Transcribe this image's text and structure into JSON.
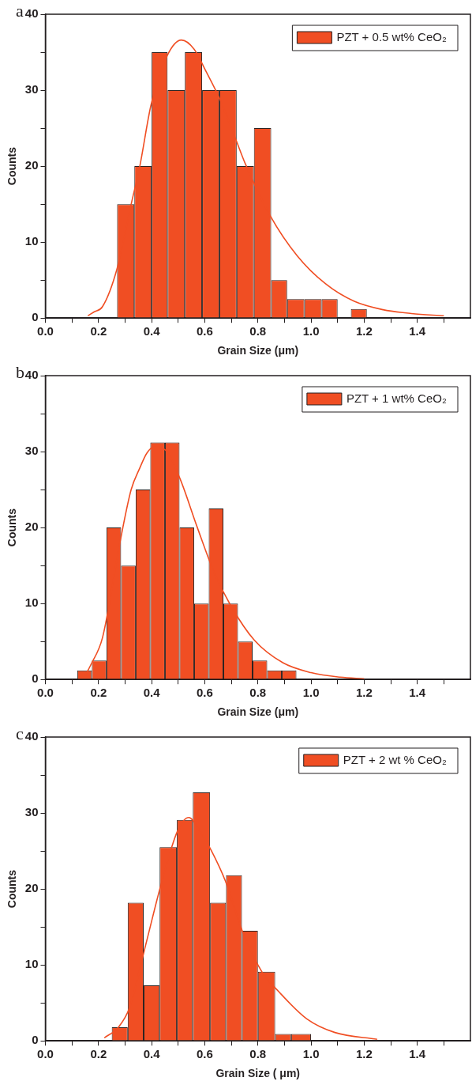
{
  "chart_data": [
    {
      "type": "histogram",
      "title": "a",
      "xlabel": "Grain Size (μm)",
      "ylabel": "Counts",
      "xlim": [
        0,
        1.6
      ],
      "ylim": [
        0,
        40
      ],
      "legend": "top right",
      "xticks": [
        {
          "value": 0,
          "label": "0.0"
        },
        {
          "value": 0.1,
          "label": null
        },
        {
          "value": 0.2,
          "label": "0.2"
        },
        {
          "value": 0.3,
          "label": null
        },
        {
          "value": 0.4,
          "label": "0.4"
        },
        {
          "value": 0.5,
          "label": null
        },
        {
          "value": 0.6,
          "label": "0.6"
        },
        {
          "value": 0.7,
          "label": null
        },
        {
          "value": 0.8,
          "label": "0.8"
        },
        {
          "value": 0.9,
          "label": null
        },
        {
          "value": 1,
          "label": "1.0"
        },
        {
          "value": 1.1,
          "label": null
        },
        {
          "value": 1.2,
          "label": "1.2"
        },
        {
          "value": 1.3,
          "label": null
        },
        {
          "value": 1.4,
          "label": "1.4"
        },
        {
          "value": 1.5,
          "label": null
        }
      ],
      "yticks": [
        0,
        {
          "value": 5,
          "label": null
        },
        10,
        {
          "value": 15,
          "label": null
        },
        20,
        {
          "value": 25,
          "label": null
        },
        30,
        {
          "value": 35,
          "label": null
        },
        40
      ],
      "series": [
        {
          "name": "PZT + 0.5 wt% CeO₂",
          "color": "#f04e23",
          "bins": [
            0.27,
            0.335,
            0.4,
            0.46,
            0.525,
            0.59,
            0.655,
            0.72,
            0.785,
            0.85,
            0.91,
            0.975,
            1.04,
            1.1,
            1.15,
            1.21
          ],
          "values": [
            15,
            20,
            35,
            30,
            35,
            30,
            30,
            20,
            25,
            5,
            2.5,
            2.5,
            2.5,
            0,
            1.2
          ]
        },
        {
          "type": "line",
          "color": "#f04e23",
          "x": [
            0.16,
            0.183,
            0.215,
            0.269,
            0.323,
            0.355,
            0.398,
            0.458,
            0.512,
            0.56,
            0.603,
            0.657,
            0.716,
            0.754,
            0.846,
            0.948,
            1.055,
            1.163,
            1.271,
            1.378,
            1.5
          ],
          "values": [
            0.3,
            0.8,
            1.5,
            6.4,
            15,
            19.9,
            28.1,
            34.5,
            36.6,
            35.4,
            32.6,
            28.8,
            23.6,
            20.2,
            13.5,
            8.2,
            4.5,
            2.2,
            1.1,
            0.6,
            0.3
          ]
        }
      ]
    },
    {
      "type": "histogram",
      "title": "b",
      "xlabel": "Grain Size (μm)",
      "ylabel": "Counts",
      "xlim": [
        0,
        1.6
      ],
      "ylim": [
        0,
        40
      ],
      "legend": "top right",
      "xticks": [
        {
          "value": 0,
          "label": "0.0"
        },
        {
          "value": 0.1,
          "label": null
        },
        {
          "value": 0.2,
          "label": "0.2"
        },
        {
          "value": 0.3,
          "label": null
        },
        {
          "value": 0.4,
          "label": "0.4"
        },
        {
          "value": 0.5,
          "label": null
        },
        {
          "value": 0.6,
          "label": "0.6"
        },
        {
          "value": 0.7,
          "label": null
        },
        {
          "value": 0.8,
          "label": "0.8"
        },
        {
          "value": 0.9,
          "label": null
        },
        {
          "value": 1,
          "label": "1.0"
        },
        {
          "value": 1.1,
          "label": null
        },
        {
          "value": 1.2,
          "label": "1.2"
        },
        {
          "value": 1.3,
          "label": null
        },
        {
          "value": 1.4,
          "label": "1.4"
        },
        {
          "value": 1.5,
          "label": null
        }
      ],
      "yticks": [
        0,
        {
          "value": 5,
          "label": null
        },
        10,
        {
          "value": 15,
          "label": null
        },
        20,
        {
          "value": 25,
          "label": null
        },
        30,
        {
          "value": 35,
          "label": null
        },
        40
      ],
      "series": [
        {
          "name": "PZT + 1 wt% CeO₂",
          "color": "#f04e23",
          "bins": [
            0.12,
            0.175,
            0.23,
            0.285,
            0.34,
            0.395,
            0.45,
            0.505,
            0.56,
            0.615,
            0.67,
            0.725,
            0.78,
            0.835,
            0.89,
            0.945
          ],
          "values": [
            1.2,
            2.5,
            20,
            15,
            25,
            31.2,
            31.2,
            20,
            10,
            22.5,
            10,
            5,
            2.5,
            1.2,
            1.2
          ]
        },
        {
          "type": "line",
          "color": "#f04e23",
          "x": [
            0.15,
            0.172,
            0.215,
            0.28,
            0.323,
            0.355,
            0.382,
            0.409,
            0.452,
            0.506,
            0.571,
            0.635,
            0.7,
            0.786,
            0.894,
            1,
            1.11,
            1.2
          ],
          "values": [
            0.5,
            2,
            5.5,
            17.9,
            25,
            27.8,
            29.8,
            30.6,
            30.2,
            26.5,
            20.1,
            14.1,
            9.6,
            5.2,
            2.2,
            0.9,
            0.3,
            0.1
          ]
        }
      ]
    },
    {
      "type": "histogram",
      "title": "c",
      "xlabel": "Grain Size ( μm)",
      "ylabel": "Counts",
      "xlim": [
        0,
        1.6
      ],
      "ylim": [
        0,
        40
      ],
      "legend": "top right",
      "xticks": [
        {
          "value": 0,
          "label": "0.0"
        },
        {
          "value": 0.1,
          "label": null
        },
        {
          "value": 0.2,
          "label": "0.2"
        },
        {
          "value": 0.3,
          "label": null
        },
        {
          "value": 0.4,
          "label": "0.4"
        },
        {
          "value": 0.5,
          "label": null
        },
        {
          "value": 0.6,
          "label": "0.6"
        },
        {
          "value": 0.7,
          "label": null
        },
        {
          "value": 0.8,
          "label": "0.8"
        },
        {
          "value": 0.9,
          "label": null
        },
        {
          "value": 1,
          "label": "1.0"
        },
        {
          "value": 1.1,
          "label": null
        },
        {
          "value": 1.2,
          "label": "1.2"
        },
        {
          "value": 1.3,
          "label": null
        },
        {
          "value": 1.4,
          "label": "1.4"
        },
        {
          "value": 1.5,
          "label": null
        }
      ],
      "yticks": [
        0,
        {
          "value": 5,
          "label": null
        },
        10,
        {
          "value": 15,
          "label": null
        },
        20,
        {
          "value": 25,
          "label": null
        },
        30,
        {
          "value": 35,
          "label": null
        },
        40
      ],
      "series": [
        {
          "name": "PZT + 2 wt % CeO₂",
          "color": "#f04e23",
          "bins": [
            0.25,
            0.31,
            0.37,
            0.43,
            0.495,
            0.555,
            0.62,
            0.68,
            0.74,
            0.8,
            0.865,
            0.925,
            1
          ],
          "values": [
            1.8,
            18.2,
            7.3,
            25.5,
            29.1,
            32.7,
            18.2,
            21.8,
            14.5,
            9.1,
            0.9,
            0.9
          ]
        },
        {
          "type": "line",
          "color": "#f04e23",
          "x": [
            0.222,
            0.275,
            0.317,
            0.381,
            0.434,
            0.497,
            0.54,
            0.582,
            0.624,
            0.677,
            0.741,
            0.815,
            0.878,
            0.984,
            1.09,
            1.249
          ],
          "values": [
            0.4,
            1.8,
            4.4,
            13.1,
            20.4,
            27.6,
            29.4,
            27.6,
            25.1,
            21.1,
            14.5,
            9.1,
            6.5,
            2.9,
            1.1,
            0.2
          ]
        }
      ]
    }
  ]
}
